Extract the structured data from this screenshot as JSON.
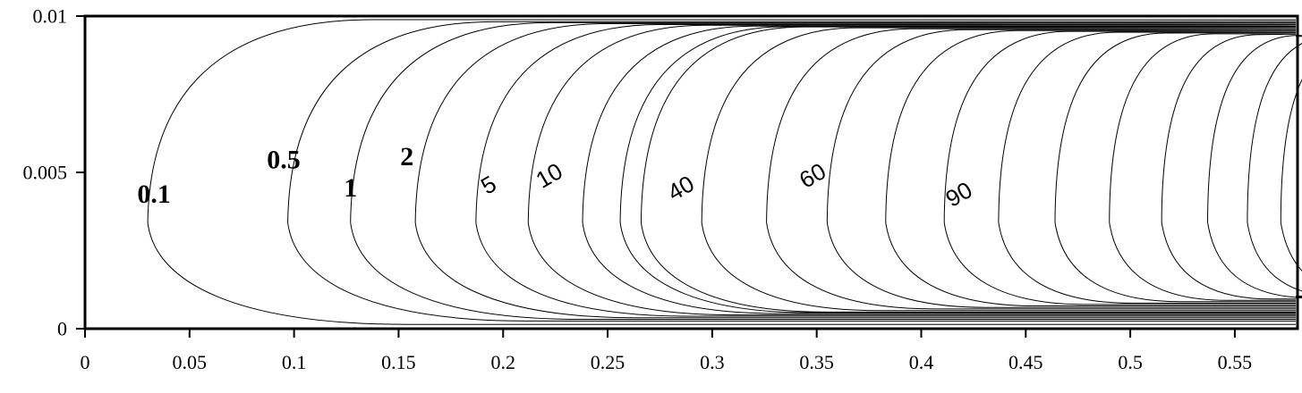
{
  "chart_data": {
    "type": "contour",
    "title": "",
    "xlabel": "",
    "ylabel": "",
    "xlim": [
      0,
      0.58
    ],
    "ylim": [
      0,
      0.01
    ],
    "x_ticks": [
      "0",
      "0.05",
      "0.1",
      "0.15",
      "0.2",
      "0.25",
      "0.3",
      "0.35",
      "0.4",
      "0.45",
      "0.5",
      "0.55"
    ],
    "x_tick_values": [
      0,
      0.05,
      0.1,
      0.15,
      0.2,
      0.25,
      0.3,
      0.35,
      0.4,
      0.45,
      0.5,
      0.55
    ],
    "y_ticks": [
      "0",
      "0.005",
      "0.01"
    ],
    "y_tick_values": [
      0,
      0.005,
      0.01
    ],
    "grid": false,
    "contour_labels": [
      {
        "text": "0.1",
        "x": 0.033,
        "y": 0.0043,
        "bold": true
      },
      {
        "text": "0.5",
        "x": 0.095,
        "y": 0.0054,
        "bold": true
      },
      {
        "text": "1",
        "x": 0.127,
        "y": 0.0045,
        "bold": true
      },
      {
        "text": "2",
        "x": 0.154,
        "y": 0.0055,
        "bold": true
      },
      {
        "text": "5",
        "x": 0.193,
        "y": 0.0046,
        "bold": false
      },
      {
        "text": "10",
        "x": 0.222,
        "y": 0.0049,
        "bold": false
      },
      {
        "text": "40",
        "x": 0.285,
        "y": 0.0045,
        "bold": false
      },
      {
        "text": "60",
        "x": 0.348,
        "y": 0.0049,
        "bold": false
      },
      {
        "text": "90",
        "x": 0.418,
        "y": 0.0043,
        "bold": false
      }
    ],
    "contours": [
      {
        "tip_x": 0.03,
        "labelled": true
      },
      {
        "tip_x": 0.097,
        "labelled": true
      },
      {
        "tip_x": 0.127,
        "labelled": true
      },
      {
        "tip_x": 0.158,
        "labelled": true
      },
      {
        "tip_x": 0.187,
        "labelled": true
      },
      {
        "tip_x": 0.212,
        "labelled": true
      },
      {
        "tip_x": 0.238,
        "labelled": false
      },
      {
        "tip_x": 0.256,
        "labelled": false
      },
      {
        "tip_x": 0.266,
        "labelled": true
      },
      {
        "tip_x": 0.295,
        "labelled": false
      },
      {
        "tip_x": 0.326,
        "labelled": true
      },
      {
        "tip_x": 0.355,
        "labelled": false
      },
      {
        "tip_x": 0.383,
        "labelled": false
      },
      {
        "tip_x": 0.411,
        "labelled": true
      },
      {
        "tip_x": 0.437,
        "labelled": false
      },
      {
        "tip_x": 0.464,
        "labelled": false
      },
      {
        "tip_x": 0.49,
        "labelled": false
      },
      {
        "tip_x": 0.515,
        "labelled": false
      },
      {
        "tip_x": 0.537,
        "labelled": false
      },
      {
        "tip_x": 0.556,
        "labelled": false
      },
      {
        "tip_x": 0.572,
        "labelled": false
      }
    ]
  }
}
